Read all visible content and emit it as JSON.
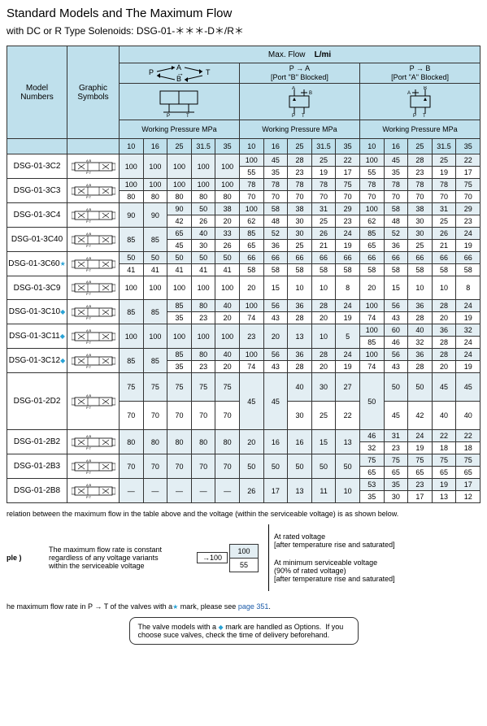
{
  "title": "Standard Models and The Maximum Flow",
  "subtitle": "with DC or R Type Solenoids: DSG-01-＊＊＊-D＊/R＊",
  "headers": {
    "model": "Model\nNumbers",
    "graphic": "Graphic\nSymbols",
    "maxflow": "Max. Flow",
    "unit": "L/mi",
    "flowPaths": {
      "all": "P↔A/B↔T",
      "pa": "P  →  A",
      "paNote": "[Port \"B\" Blocked]",
      "pb": "P  →  B",
      "pbNote": "[Port \"A\" Blocked]"
    },
    "wp": "Working Pressure  MPa",
    "pressures": [
      "10",
      "16",
      "25",
      "31.5",
      "35"
    ]
  },
  "rows": [
    {
      "model": "DSG-01-3C2",
      "mark": "",
      "sym": "3C2",
      "span": 2,
      "g1": [
        [
          "100",
          "100",
          "100",
          "100",
          "100"
        ],
        null
      ],
      "g2": [
        [
          "100",
          "45",
          "28",
          "25",
          "22"
        ],
        [
          "55",
          "35",
          "23",
          "19",
          "17"
        ]
      ],
      "g3": [
        [
          "100",
          "45",
          "28",
          "25",
          "22"
        ],
        [
          "55",
          "35",
          "23",
          "19",
          "17"
        ]
      ],
      "hi": [
        1,
        0
      ]
    },
    {
      "model": "DSG-01-3C3",
      "mark": "",
      "sym": "3C3",
      "span": 2,
      "g1": [
        [
          "100",
          "100",
          "100",
          "100",
          "100"
        ],
        [
          "80",
          "80",
          "80",
          "80",
          "80"
        ]
      ],
      "g2": [
        [
          "78",
          "78",
          "78",
          "78",
          "75"
        ],
        [
          "70",
          "70",
          "70",
          "70",
          "70"
        ]
      ],
      "g3": [
        [
          "78",
          "78",
          "78",
          "78",
          "75"
        ],
        [
          "70",
          "70",
          "70",
          "70",
          "70"
        ]
      ],
      "hi": [
        1,
        0
      ]
    },
    {
      "model": "DSG-01-3C4",
      "mark": "",
      "sym": "3C4",
      "span": 2,
      "g1": [
        [
          "90",
          "90",
          "90",
          "50",
          "38"
        ],
        [
          null,
          null,
          "42",
          "26",
          "20"
        ]
      ],
      "g2": [
        [
          "100",
          "58",
          "38",
          "31",
          "29"
        ],
        [
          "62",
          "48",
          "30",
          "25",
          "23"
        ]
      ],
      "g3": [
        [
          "100",
          "58",
          "38",
          "31",
          "29"
        ],
        [
          "62",
          "48",
          "30",
          "25",
          "23"
        ]
      ],
      "hi": [
        1,
        0
      ],
      "merge1": 2
    },
    {
      "model": "DSG-01-3C40",
      "mark": "",
      "sym": "3C40",
      "span": 2,
      "g1": [
        [
          "85",
          "85",
          "65",
          "40",
          "33"
        ],
        [
          null,
          null,
          "45",
          "30",
          "26"
        ]
      ],
      "g2": [
        [
          "85",
          "52",
          "30",
          "26",
          "24"
        ],
        [
          "65",
          "36",
          "25",
          "21",
          "19"
        ]
      ],
      "g3": [
        [
          "85",
          "52",
          "30",
          "26",
          "24"
        ],
        [
          "65",
          "36",
          "25",
          "21",
          "19"
        ]
      ],
      "hi": [
        1,
        0
      ],
      "merge1": 2
    },
    {
      "model": "DSG-01-3C60",
      "mark": "star",
      "sym": "3C60",
      "span": 2,
      "g1": [
        [
          "50",
          "50",
          "50",
          "50",
          "50"
        ],
        [
          "41",
          "41",
          "41",
          "41",
          "41"
        ]
      ],
      "g2": [
        [
          "66",
          "66",
          "66",
          "66",
          "66"
        ],
        [
          "58",
          "58",
          "58",
          "58",
          "58"
        ]
      ],
      "g3": [
        [
          "66",
          "66",
          "66",
          "66",
          "66"
        ],
        [
          "58",
          "58",
          "58",
          "58",
          "58"
        ]
      ],
      "hi": [
        1,
        0
      ]
    },
    {
      "model": "DSG-01-3C9",
      "mark": "",
      "sym": "3C9",
      "span": 1,
      "g1": [
        [
          "100",
          "100",
          "100",
          "100",
          "100"
        ]
      ],
      "g2": [
        [
          "20",
          "15",
          "10",
          "10",
          "8"
        ]
      ],
      "g3": [
        [
          "20",
          "15",
          "10",
          "10",
          "8"
        ]
      ],
      "hi": [
        0
      ]
    },
    {
      "model": "DSG-01-3C10",
      "mark": "diamond",
      "sym": "3C10",
      "span": 2,
      "g1": [
        [
          "85",
          "85",
          "85",
          "80",
          "40"
        ],
        [
          null,
          null,
          "35",
          "23",
          "20"
        ]
      ],
      "g2": [
        [
          "100",
          "56",
          "36",
          "28",
          "24"
        ],
        [
          "74",
          "43",
          "28",
          "20",
          "19"
        ]
      ],
      "g3": [
        [
          "100",
          "56",
          "36",
          "28",
          "24"
        ],
        [
          "74",
          "43",
          "28",
          "20",
          "19"
        ]
      ],
      "hi": [
        1,
        0
      ],
      "merge1": 2
    },
    {
      "model": "DSG-01-3C11",
      "mark": "diamond",
      "sym": "3C11",
      "span": 2,
      "g1": [
        [
          "100",
          "100",
          "100",
          "100",
          "100"
        ],
        null
      ],
      "g2": [
        [
          "23",
          "20",
          "13",
          "10",
          "5"
        ],
        null
      ],
      "g3": [
        [
          "100",
          "60",
          "40",
          "36",
          "32"
        ],
        [
          "85",
          "46",
          "32",
          "28",
          "24"
        ]
      ],
      "hi": [
        1,
        0
      ]
    },
    {
      "model": "DSG-01-3C12",
      "mark": "diamond",
      "sym": "3C12",
      "span": 2,
      "g1": [
        [
          "85",
          "85",
          "85",
          "80",
          "40"
        ],
        [
          null,
          null,
          "35",
          "23",
          "20"
        ]
      ],
      "g2": [
        [
          "100",
          "56",
          "36",
          "28",
          "24"
        ],
        [
          "74",
          "43",
          "28",
          "20",
          "19"
        ]
      ],
      "g3": [
        [
          "100",
          "56",
          "36",
          "28",
          "24"
        ],
        [
          "74",
          "43",
          "28",
          "20",
          "19"
        ]
      ],
      "hi": [
        1,
        0
      ],
      "merge1": 2
    },
    {
      "model": "DSG-01-2D2",
      "mark": "",
      "sym": "2D2",
      "span": 2,
      "tall": true,
      "g1": [
        [
          "75",
          "75",
          "75",
          "75",
          "75"
        ],
        [
          "70",
          "70",
          "70",
          "70",
          "70"
        ]
      ],
      "g2": [
        [
          "45",
          "45",
          "40",
          "30",
          "27"
        ],
        [
          null,
          null,
          "30",
          "25",
          "22"
        ]
      ],
      "g3": [
        [
          "50",
          "50",
          "50",
          "45",
          "45"
        ],
        [
          null,
          "45",
          "42",
          "40",
          "40"
        ]
      ],
      "hi": [
        1,
        0
      ],
      "merge2": 2,
      "merge3": 1
    },
    {
      "model": "DSG-01-2B2",
      "mark": "",
      "sym": "2B2",
      "span": 2,
      "g1": [
        [
          "80",
          "80",
          "80",
          "80",
          "80"
        ],
        null
      ],
      "g2": [
        [
          "20",
          "16",
          "16",
          "15",
          "13"
        ],
        null
      ],
      "g3": [
        [
          "46",
          "31",
          "24",
          "22",
          "22"
        ],
        [
          "32",
          "23",
          "19",
          "18",
          "18"
        ]
      ],
      "hi": [
        1,
        0
      ]
    },
    {
      "model": "DSG-01-2B3",
      "mark": "",
      "sym": "2B3",
      "span": 2,
      "g1": [
        [
          "70",
          "70",
          "70",
          "70",
          "70"
        ],
        null
      ],
      "g2": [
        [
          "50",
          "50",
          "50",
          "50",
          "50"
        ],
        null
      ],
      "g3": [
        [
          "75",
          "75",
          "75",
          "75",
          "75"
        ],
        [
          "65",
          "65",
          "65",
          "65",
          "65"
        ]
      ],
      "hi": [
        1,
        0
      ]
    },
    {
      "model": "DSG-01-2B8",
      "mark": "",
      "sym": "2B8",
      "span": 2,
      "g1": [
        [
          "—",
          "—",
          "—",
          "—",
          "—"
        ],
        null
      ],
      "g2": [
        [
          "26",
          "17",
          "13",
          "11",
          "10"
        ],
        null
      ],
      "g3": [
        [
          "53",
          "35",
          "23",
          "19",
          "17"
        ],
        [
          "35",
          "30",
          "17",
          "13",
          "12"
        ]
      ],
      "hi": [
        1,
        0
      ]
    }
  ],
  "footnote1": "relation between the maximum flow in the table above and the voltage (within the serviceable voltage) is as shown below.",
  "example": {
    "label": "ple )",
    "text": "The maximum flow rate is constant\nregardless of any voltage variants\nwithin the serviceable voltage",
    "arrowVal": "100",
    "hiVal": "100",
    "loVal": "55",
    "rated": "At rated voltage\n[after temperature rise and saturated]",
    "min": "At minimum serviceable voltage\n(90% of rated voltage)\n[after temperature rise and saturated]"
  },
  "footnote2a": "he maximum flow rate in P → T of the valves with a",
  "footnote2b": " mark, please see ",
  "footnote2link": "page 351",
  "noteBox": "The valve models with a ◆ mark are handled as Options.  If you choose suce valves, check the time of delivery beforehand.",
  "colors": {
    "headerBg": "#bfe0ec",
    "hiBg": "#e3eef3",
    "border": "#333333",
    "link": "#1a5aa8",
    "accent": "#2aa3d6"
  }
}
